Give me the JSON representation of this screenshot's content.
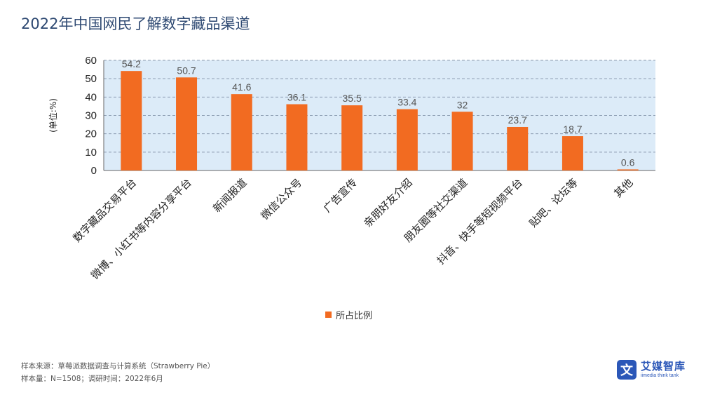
{
  "title": "2022年中国网民了解数字藏品渠道",
  "chart_data": {
    "type": "bar",
    "categories": [
      "数字藏品交易平台",
      "微博、小红书等内容分享平台",
      "新闻报道",
      "微信公众号",
      "广告宣传",
      "亲朋好友介绍",
      "朋友圈等社交渠道",
      "抖音、快手等短视频平台",
      "贴吧、论坛等",
      "其他"
    ],
    "series": [
      {
        "name": "所占比例",
        "values": [
          54.2,
          50.7,
          41.6,
          36.1,
          35.5,
          33.4,
          32,
          23.7,
          18.7,
          0.6
        ]
      }
    ],
    "data_labels": [
      "54.2",
      "50.7",
      "41.6",
      "36.1",
      "35.5",
      "33.4",
      "32",
      "23.7",
      "18.7",
      "0.6"
    ],
    "ylabel": "(单位:%)",
    "ylim": [
      0,
      60
    ],
    "yticks": [
      "0",
      "10",
      "20",
      "30",
      "40",
      "50",
      "60"
    ],
    "grid": true,
    "legend_position": "bottom",
    "colors": {
      "bar": "#f26b21",
      "plot_bg": "#dcebf8",
      "grid": "#8a9bb0"
    }
  },
  "source": {
    "line1": "样本来源：草莓派数据调查与计算系统（Strawberry Pie）",
    "line2": "样本量：N=1508；调研时间：2022年6月"
  },
  "logo": {
    "mark": "文",
    "name": "艾媒智库",
    "tagline": "iimedia think tank"
  }
}
